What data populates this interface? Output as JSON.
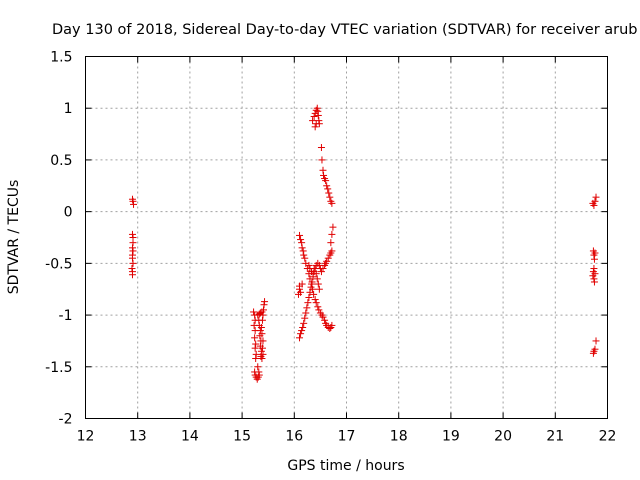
{
  "chart_data": {
    "type": "scatter",
    "title": "Day 130 of 2018, Sidereal Day-to-day VTEC variation (SDTVAR) for receiver arub",
    "xlabel": "GPS time / hours",
    "ylabel": "SDTVAR / TECUs",
    "xlim": [
      12,
      22
    ],
    "ylim": [
      -2,
      1.5
    ],
    "xticks": [
      "12",
      "13",
      "14",
      "15",
      "16",
      "17",
      "18",
      "19",
      "20",
      "21",
      "22"
    ],
    "yticks": [
      "1.5",
      "1",
      "0.5",
      "0",
      "-0.5",
      "-1",
      "-1.5",
      "-2"
    ],
    "grid": true,
    "marker": "plus",
    "color": "#e00000",
    "series": [
      {
        "name": "SDTVAR",
        "points": [
          [
            12.9,
            0.12
          ],
          [
            12.91,
            0.1
          ],
          [
            12.92,
            0.07
          ],
          [
            12.9,
            -0.22
          ],
          [
            12.91,
            -0.25
          ],
          [
            12.91,
            -0.3
          ],
          [
            12.9,
            -0.35
          ],
          [
            12.91,
            -0.38
          ],
          [
            12.9,
            -0.42
          ],
          [
            12.9,
            -0.45
          ],
          [
            12.91,
            -0.5
          ],
          [
            12.89,
            -0.55
          ],
          [
            12.9,
            -0.58
          ],
          [
            12.9,
            -0.61
          ],
          [
            15.22,
            -0.97
          ],
          [
            15.24,
            -1.0
          ],
          [
            15.25,
            -1.05
          ],
          [
            15.23,
            -1.1
          ],
          [
            15.25,
            -1.15
          ],
          [
            15.24,
            -1.22
          ],
          [
            15.26,
            -1.28
          ],
          [
            15.25,
            -1.32
          ],
          [
            15.27,
            -1.38
          ],
          [
            15.26,
            -1.42
          ],
          [
            15.24,
            -1.55
          ],
          [
            15.25,
            -1.58
          ],
          [
            15.27,
            -1.6
          ],
          [
            15.29,
            -1.62
          ],
          [
            15.31,
            -1.6
          ],
          [
            15.33,
            -1.58
          ],
          [
            15.32,
            -1.55
          ],
          [
            15.3,
            -1.5
          ],
          [
            15.3,
            -1.0
          ],
          [
            15.32,
            -1.05
          ],
          [
            15.33,
            -1.1
          ],
          [
            15.35,
            -1.15
          ],
          [
            15.34,
            -1.2
          ],
          [
            15.36,
            -1.25
          ],
          [
            15.35,
            -1.3
          ],
          [
            15.37,
            -1.35
          ],
          [
            15.36,
            -1.4
          ],
          [
            15.38,
            -1.42
          ],
          [
            15.4,
            -1.38
          ],
          [
            15.39,
            -1.32
          ],
          [
            15.4,
            -1.25
          ],
          [
            15.38,
            -1.18
          ],
          [
            15.37,
            -1.12
          ],
          [
            15.39,
            -1.05
          ],
          [
            15.4,
            -1.0
          ],
          [
            15.41,
            -0.95
          ],
          [
            15.42,
            -0.9
          ],
          [
            15.43,
            -0.87
          ],
          [
            15.38,
            -0.97
          ],
          [
            15.35,
            -0.98
          ],
          [
            15.33,
            -0.99
          ],
          [
            16.1,
            -0.23
          ],
          [
            16.12,
            -0.27
          ],
          [
            16.14,
            -0.3
          ],
          [
            16.15,
            -0.35
          ],
          [
            16.17,
            -0.38
          ],
          [
            16.18,
            -0.42
          ],
          [
            16.2,
            -0.45
          ],
          [
            16.22,
            -0.5
          ],
          [
            16.25,
            -0.55
          ],
          [
            16.28,
            -0.6
          ],
          [
            16.3,
            -0.65
          ],
          [
            16.33,
            -0.7
          ],
          [
            16.35,
            -0.75
          ],
          [
            16.37,
            -0.8
          ],
          [
            16.4,
            -0.85
          ],
          [
            16.42,
            -0.88
          ],
          [
            16.45,
            -0.92
          ],
          [
            16.47,
            -0.95
          ],
          [
            16.5,
            -0.98
          ],
          [
            16.53,
            -1.0
          ],
          [
            16.55,
            -1.02
          ],
          [
            16.58,
            -1.05
          ],
          [
            16.6,
            -1.08
          ],
          [
            16.62,
            -1.1
          ],
          [
            16.65,
            -1.12
          ],
          [
            16.68,
            -1.13
          ],
          [
            16.7,
            -1.12
          ],
          [
            16.72,
            -1.1
          ],
          [
            16.1,
            -0.75
          ],
          [
            16.1,
            -0.72
          ],
          [
            16.12,
            -0.78
          ],
          [
            16.08,
            -0.8
          ],
          [
            16.15,
            -0.7
          ],
          [
            16.1,
            -1.22
          ],
          [
            16.12,
            -1.18
          ],
          [
            16.14,
            -1.15
          ],
          [
            16.16,
            -1.12
          ],
          [
            16.18,
            -1.08
          ],
          [
            16.2,
            -1.03
          ],
          [
            16.22,
            -0.98
          ],
          [
            16.24,
            -0.93
          ],
          [
            16.26,
            -0.88
          ],
          [
            16.28,
            -0.83
          ],
          [
            16.3,
            -0.78
          ],
          [
            16.32,
            -0.73
          ],
          [
            16.34,
            -0.68
          ],
          [
            16.36,
            -0.63
          ],
          [
            16.38,
            -0.58
          ],
          [
            16.4,
            -0.55
          ],
          [
            16.42,
            -0.52
          ],
          [
            16.45,
            -0.5
          ],
          [
            16.48,
            -0.52
          ],
          [
            16.5,
            -0.55
          ],
          [
            16.52,
            -0.58
          ],
          [
            16.55,
            -0.55
          ],
          [
            16.58,
            -0.52
          ],
          [
            16.6,
            -0.5
          ],
          [
            16.62,
            -0.48
          ],
          [
            16.65,
            -0.45
          ],
          [
            16.68,
            -0.42
          ],
          [
            16.7,
            -0.4
          ],
          [
            16.72,
            -0.38
          ],
          [
            16.7,
            -0.3
          ],
          [
            16.72,
            -0.22
          ],
          [
            16.74,
            -0.15
          ],
          [
            16.28,
            -0.52
          ],
          [
            16.3,
            -0.55
          ],
          [
            16.33,
            -0.58
          ],
          [
            16.36,
            -0.6
          ],
          [
            16.38,
            -0.55
          ],
          [
            16.42,
            -0.6
          ],
          [
            16.44,
            -0.65
          ],
          [
            16.46,
            -0.7
          ],
          [
            16.48,
            -0.75
          ],
          [
            16.35,
            0.88
          ],
          [
            16.38,
            0.92
          ],
          [
            16.4,
            0.95
          ],
          [
            16.42,
            0.98
          ],
          [
            16.44,
            1.0
          ],
          [
            16.45,
            0.97
          ],
          [
            16.46,
            0.93
          ],
          [
            16.47,
            0.88
          ],
          [
            16.48,
            0.85
          ],
          [
            16.42,
            0.85
          ],
          [
            16.4,
            0.82
          ],
          [
            16.52,
            0.62
          ],
          [
            16.53,
            0.5
          ],
          [
            16.55,
            0.4
          ],
          [
            16.56,
            0.35
          ],
          [
            16.58,
            0.32
          ],
          [
            16.6,
            0.3
          ],
          [
            16.62,
            0.25
          ],
          [
            16.64,
            0.22
          ],
          [
            16.66,
            0.18
          ],
          [
            16.68,
            0.14
          ],
          [
            16.7,
            0.1
          ],
          [
            16.72,
            0.08
          ],
          [
            21.72,
            0.08
          ],
          [
            21.74,
            0.06
          ],
          [
            21.76,
            0.1
          ],
          [
            21.78,
            0.14
          ],
          [
            21.73,
            -0.38
          ],
          [
            21.74,
            -0.42
          ],
          [
            21.76,
            -0.4
          ],
          [
            21.75,
            -0.46
          ],
          [
            21.74,
            -0.55
          ],
          [
            21.73,
            -0.58
          ],
          [
            21.72,
            -0.62
          ],
          [
            21.74,
            -0.65
          ],
          [
            21.76,
            -0.6
          ],
          [
            21.75,
            -0.68
          ],
          [
            21.78,
            -1.25
          ],
          [
            21.76,
            -1.33
          ],
          [
            21.74,
            -1.35
          ],
          [
            21.73,
            -1.37
          ]
        ]
      }
    ]
  }
}
